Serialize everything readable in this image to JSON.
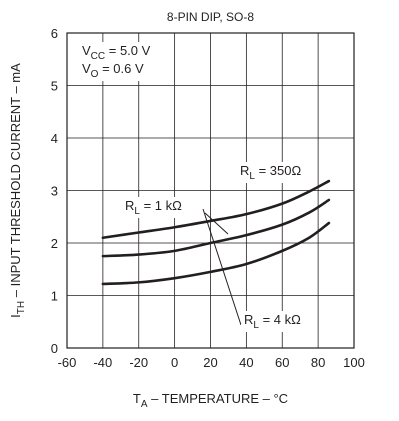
{
  "chart_data": {
    "type": "line",
    "title": "8-PIN DIP, SO-8",
    "xlabel": {
      "main": "T",
      "sub": "A",
      "rest": " – TEMPERATURE – °C"
    },
    "ylabel": {
      "main": "I",
      "sub": "TH",
      "rest": " – INPUT THRESHOLD CURRENT – mA"
    },
    "xlim": [
      -60,
      100
    ],
    "ylim": [
      0,
      6
    ],
    "xticks": [
      -60,
      -40,
      -20,
      0,
      20,
      40,
      60,
      80,
      100
    ],
    "yticks": [
      0,
      1,
      2,
      3,
      4,
      5,
      6
    ],
    "grid": true,
    "conditions": [
      {
        "main": "V",
        "sub": "CC",
        "rest": " = 5.0 V"
      },
      {
        "main": "V",
        "sub": "O",
        "rest": " = 0.6 V"
      }
    ],
    "series": [
      {
        "name": "R_L = 350Ω",
        "label": {
          "main": "R",
          "sub": "L",
          "rest": " = 350Ω"
        },
        "x": [
          -40,
          -20,
          0,
          20,
          40,
          60,
          75,
          86
        ],
        "y": [
          2.1,
          2.2,
          2.3,
          2.42,
          2.55,
          2.75,
          2.98,
          3.18
        ]
      },
      {
        "name": "R_L = 1 kΩ",
        "label": {
          "main": "R",
          "sub": "L",
          "rest": " = 1 kΩ"
        },
        "x": [
          -40,
          -20,
          0,
          20,
          40,
          60,
          75,
          86
        ],
        "y": [
          1.75,
          1.78,
          1.85,
          2.0,
          2.15,
          2.35,
          2.58,
          2.82
        ]
      },
      {
        "name": "R_L = 4 kΩ",
        "label": {
          "main": "R",
          "sub": "L",
          "rest": " = 4 kΩ"
        },
        "x": [
          -40,
          -20,
          0,
          20,
          40,
          60,
          75,
          86
        ],
        "y": [
          1.22,
          1.25,
          1.33,
          1.45,
          1.6,
          1.85,
          2.1,
          2.38
        ]
      }
    ]
  }
}
